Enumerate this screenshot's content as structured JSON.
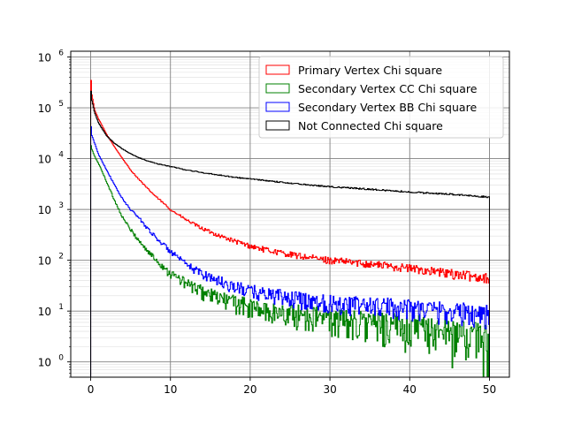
{
  "chart_data": {
    "type": "line",
    "title": "",
    "xlabel": "",
    "ylabel": "",
    "xlim": [
      -2.5,
      52.5
    ],
    "ylim": [
      0.5,
      1300000
    ],
    "yscale": "log",
    "grid": true,
    "legend_position": "top-right",
    "x_ticks": [
      0,
      10,
      20,
      30,
      40,
      50
    ],
    "x_tick_labels": [
      "0",
      "10",
      "20",
      "30",
      "40",
      "50"
    ],
    "y_ticks": [
      1,
      10,
      100,
      1000,
      10000,
      100000,
      1000000
    ],
    "y_tick_bases": [
      "10",
      "10",
      "10",
      "10",
      "10",
      "10",
      "10"
    ],
    "y_tick_exponents": [
      "0",
      "1",
      "2",
      "3",
      "4",
      "5",
      "6"
    ],
    "series": [
      {
        "name": "Primary Vertex Chi square",
        "color": "#ff0000",
        "x": [
          0,
          0.1,
          0.5,
          1,
          2,
          3,
          4,
          5,
          6,
          7,
          8,
          10,
          12,
          14,
          16,
          18,
          20,
          22,
          25,
          28,
          30,
          35,
          40,
          45,
          50
        ],
        "y": [
          600000,
          200000,
          90000,
          60000,
          30000,
          17000,
          10000,
          6000,
          4000,
          2700,
          1900,
          1000,
          620,
          420,
          310,
          240,
          190,
          160,
          130,
          110,
          100,
          85,
          70,
          55,
          45
        ]
      },
      {
        "name": "Secondary Vertex CC Chi square",
        "color": "#008000",
        "x": [
          0,
          0.1,
          0.5,
          1,
          2,
          3,
          4,
          5,
          6,
          7,
          8,
          10,
          12,
          14,
          16,
          18,
          20,
          22,
          25,
          28,
          30,
          35,
          40,
          45,
          50
        ],
        "y": [
          20000,
          16000,
          11000,
          8000,
          3500,
          1500,
          700,
          400,
          250,
          160,
          110,
          55,
          35,
          24,
          18,
          15,
          12,
          10,
          9,
          8,
          7,
          6,
          5,
          4,
          3
        ]
      },
      {
        "name": "Secondary Vertex BB Chi square",
        "color": "#0000ff",
        "x": [
          0,
          0.1,
          0.5,
          1,
          2,
          3,
          4,
          5,
          6,
          7,
          8,
          10,
          12,
          14,
          16,
          18,
          20,
          22,
          25,
          28,
          30,
          35,
          40,
          45,
          50
        ],
        "y": [
          60000,
          30000,
          20000,
          12000,
          6000,
          3000,
          1600,
          1000,
          700,
          450,
          300,
          150,
          80,
          55,
          40,
          30,
          25,
          22,
          18,
          16,
          15,
          13,
          12,
          10,
          9
        ]
      },
      {
        "name": "Not Connected Chi square",
        "color": "#000000",
        "x": [
          0,
          0.1,
          0.5,
          1,
          2,
          3,
          4,
          5,
          6,
          7,
          8,
          10,
          12,
          14,
          16,
          18,
          20,
          22,
          25,
          28,
          30,
          35,
          40,
          45,
          50
        ],
        "y": [
          300000,
          150000,
          80000,
          50000,
          28000,
          20000,
          15500,
          12500,
          10500,
          9200,
          8200,
          7000,
          6000,
          5300,
          4800,
          4300,
          4000,
          3700,
          3300,
          3000,
          2800,
          2500,
          2200,
          2000,
          1750
        ]
      }
    ]
  }
}
